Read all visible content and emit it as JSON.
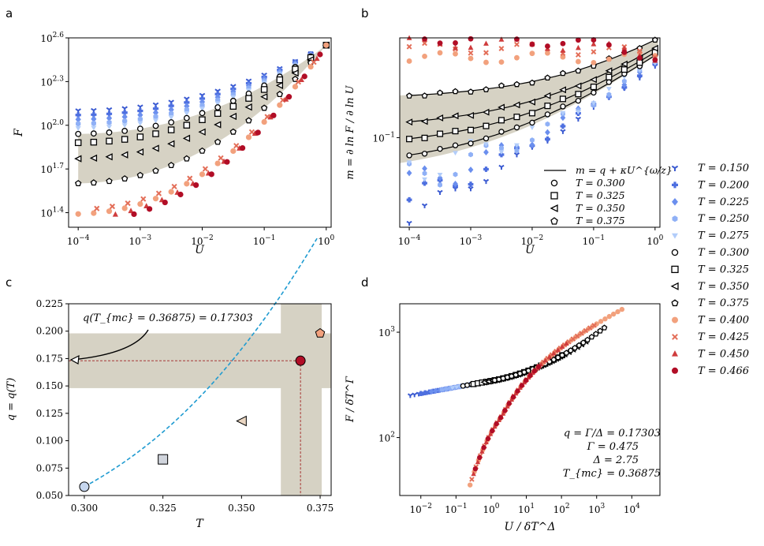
{
  "colors": {
    "series": [
      "#3a5ad1",
      "#4d6fe0",
      "#6b8fee",
      "#8fb0f6",
      "#b2cdfa",
      "#d3dff0",
      "#e8e1d5",
      "#f5c8a8",
      "#f2a17d",
      "#e36e58",
      "#cf3b3c",
      "#b10d26",
      "#a50026"
    ],
    "band": "#d6d2c4",
    "fit_line": "#000000",
    "dashed_fit": "#1f9bd1",
    "marker_guide": "#a02020"
  },
  "panel_labels": {
    "a": "a",
    "b": "b",
    "c": "c",
    "d": "d"
  },
  "legend": {
    "title": "",
    "items": [
      {
        "label": "T = 0.150",
        "marker": "tri-down",
        "color": "#3a5ad1"
      },
      {
        "label": "T = 0.200",
        "marker": "plus",
        "color": "#4d6fe0"
      },
      {
        "label": "T = 0.225",
        "marker": "diamond",
        "color": "#6b8fee"
      },
      {
        "label": "T = 0.250",
        "marker": "hexagon",
        "color": "#8fb0f6"
      },
      {
        "label": "T = 0.275",
        "marker": "tri-down-filled",
        "color": "#b2cdfa"
      },
      {
        "label": "T = 0.300",
        "marker": "circle-open",
        "color": "#000000"
      },
      {
        "label": "T = 0.325",
        "marker": "square-open",
        "color": "#000000"
      },
      {
        "label": "T = 0.350",
        "marker": "tri-left-open",
        "color": "#000000"
      },
      {
        "label": "T = 0.375",
        "marker": "pentagon-open",
        "color": "#000000"
      },
      {
        "label": "T = 0.400",
        "marker": "circle",
        "color": "#f2a17d"
      },
      {
        "label": "T = 0.425",
        "marker": "x",
        "color": "#e36e58"
      },
      {
        "label": "T = 0.450",
        "marker": "triangle-up",
        "color": "#cf3b3c"
      },
      {
        "label": "T = 0.466",
        "marker": "circle",
        "color": "#b10d26"
      }
    ]
  },
  "chart_data": [
    {
      "panel": "a",
      "type": "scatter",
      "xlabel": "U",
      "ylabel": "F",
      "xscale": "log",
      "yscale": "log",
      "xlim": [
        7e-05,
        1.2
      ],
      "ylim_log10": [
        1.3,
        2.6
      ],
      "x_ticks": [
        "10^{-4}",
        "10^{-3}",
        "10^{-2}",
        "10^{-1}",
        "10^{0}"
      ],
      "y_ticks": [
        "10^{1.4}",
        "10^{1.7}",
        "10^{2.0}",
        "10^{2.3}",
        "10^{2.6}"
      ],
      "note": "F vs U for each temperature; curves converge near U=1 at F≈10^2.55",
      "series": [
        {
          "name": "T = 0.150",
          "log10F_at_Umin": 2.1
        },
        {
          "name": "T = 0.200",
          "log10F_at_Umin": 2.07
        },
        {
          "name": "T = 0.225",
          "log10F_at_Umin": 2.04
        },
        {
          "name": "T = 0.250",
          "log10F_at_Umin": 2.01
        },
        {
          "name": "T = 0.275",
          "log10F_at_Umin": 1.98
        },
        {
          "name": "T = 0.300",
          "log10F_at_Umin": 1.94
        },
        {
          "name": "T = 0.325",
          "log10F_at_Umin": 1.88
        },
        {
          "name": "T = 0.350",
          "log10F_at_Umin": 1.77
        },
        {
          "name": "T = 0.375",
          "log10F_at_Umin": 1.6
        },
        {
          "name": "T = 0.400",
          "log10F_at_Umin": 1.39
        },
        {
          "name": "T = 0.425",
          "log10F_at_Umin": 1.42
        },
        {
          "name": "T = 0.450",
          "log10F_at_Umin": 1.36
        },
        {
          "name": "T = 0.466",
          "log10F_at_Umin": 1.33
        }
      ]
    },
    {
      "panel": "b",
      "type": "scatter",
      "xlabel": "U",
      "ylabel": "m = ∂ ln F / ∂ ln U",
      "xscale": "log",
      "yscale": "log",
      "xlim": [
        7e-05,
        1.2
      ],
      "y_ticks": [
        "10^{-1}"
      ],
      "fit_label": "m = q + κU^{ω/z}",
      "legend_items": [
        "m = q + κU^{ω/z}",
        "T = 0.300",
        "T = 0.325",
        "T = 0.350",
        "T = 0.375"
      ]
    },
    {
      "panel": "c",
      "type": "scatter",
      "xlabel": "T",
      "ylabel": "q = q(T)",
      "xlim": [
        0.295,
        0.3785
      ],
      "ylim": [
        0.05,
        0.225
      ],
      "x_ticks": [
        "0.300",
        "0.325",
        "0.350",
        "0.375"
      ],
      "y_ticks": [
        "0.050",
        "0.075",
        "0.100",
        "0.125",
        "0.150",
        "0.175",
        "0.200",
        "0.225"
      ],
      "points": [
        {
          "T": 0.3,
          "q": 0.058
        },
        {
          "T": 0.325,
          "q": 0.083
        },
        {
          "T": 0.35,
          "q": 0.118
        },
        {
          "T": 0.36875,
          "q": 0.17303
        },
        {
          "T": 0.375,
          "q": 0.198
        }
      ],
      "annotation": "q(T_{mc} = 0.36875) = 0.17303",
      "band_q": [
        0.148,
        0.198
      ],
      "band_T": [
        0.3625,
        0.3755
      ]
    },
    {
      "panel": "d",
      "type": "scatter",
      "xlabel": "U / δT^Δ",
      "ylabel": "F / δT^Γ",
      "xscale": "log",
      "yscale": "log",
      "x_ticks": [
        "10^{-2}",
        "10^{-1}",
        "10^{0}",
        "10^{1}",
        "10^{2}",
        "10^{3}",
        "10^{4}"
      ],
      "y_ticks": [
        "10^{2}",
        "10^{3}"
      ],
      "params": [
        "q = Γ/Δ = 0.17303",
        "Γ = 0.475",
        "Δ = 2.75",
        "T_{mc} = 0.36875"
      ]
    }
  ]
}
